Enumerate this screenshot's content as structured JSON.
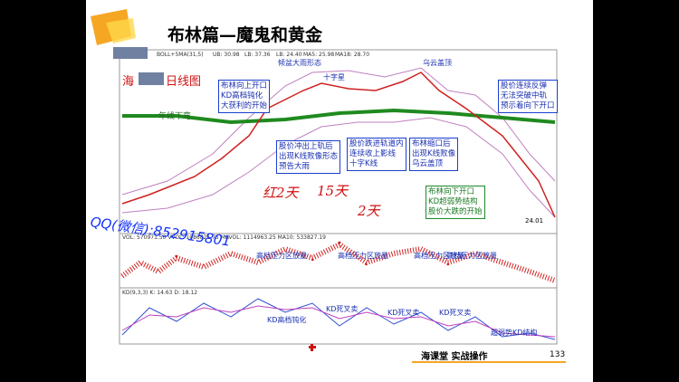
{
  "slide": {
    "title": "布林篇—魔鬼和黄金",
    "page_number": "133",
    "footer": "海课堂  实战操作"
  },
  "price_panel": {
    "indicator": "BOLL+5MA(31,5)",
    "legend": [
      "UB: 30.98",
      "LB: 37.36",
      "LB: 24.40",
      "MA5: 25.98",
      "MA18: 28.70"
    ],
    "name_left": "海",
    "name_right": "日线图",
    "low_label": "24.01",
    "year_line": "年线下弯",
    "callouts": [
      "倾盆大雨形态",
      "十字星",
      "乌云盖顶"
    ],
    "boxes": [
      [
        "布林向上开口",
        "KD高档钝化",
        "大获利的开始"
      ],
      [
        "股价冲出上轨后",
        "出现K线败像形态",
        "预告大雨"
      ],
      [
        "股价跌进轨道内",
        "连续收上影线",
        "十字K线"
      ],
      [
        "布林缩口后",
        "出现K线败像",
        "乌云盖顶"
      ],
      [
        "股价连续反弹",
        "无法突破中轨",
        "预示着向下开口"
      ],
      [
        "布林向下开口",
        "KD超弱势结构",
        "股价大跌的开始"
      ]
    ],
    "handwriting": [
      "红2天",
      "15天",
      "2天"
    ]
  },
  "watermark": "QQ(微信):852915801",
  "volume_panel": {
    "legend": "VOL: 570971.50  VVOL: 1086821.75  MAVOL: 1114963.25  MA10: 533827.19",
    "notes": [
      "高档压力区放量",
      "高档压力区放量",
      "高档压力区放量",
      "高档压力区放量"
    ]
  },
  "kd_panel": {
    "legend": "KD(9,3,3)  K: 14.63  D: 18.12",
    "notes": [
      "KD高档钝化",
      "KD死叉卖",
      "KD死叉卖",
      "KD死叉卖",
      "超弱势KD结构"
    ]
  }
}
